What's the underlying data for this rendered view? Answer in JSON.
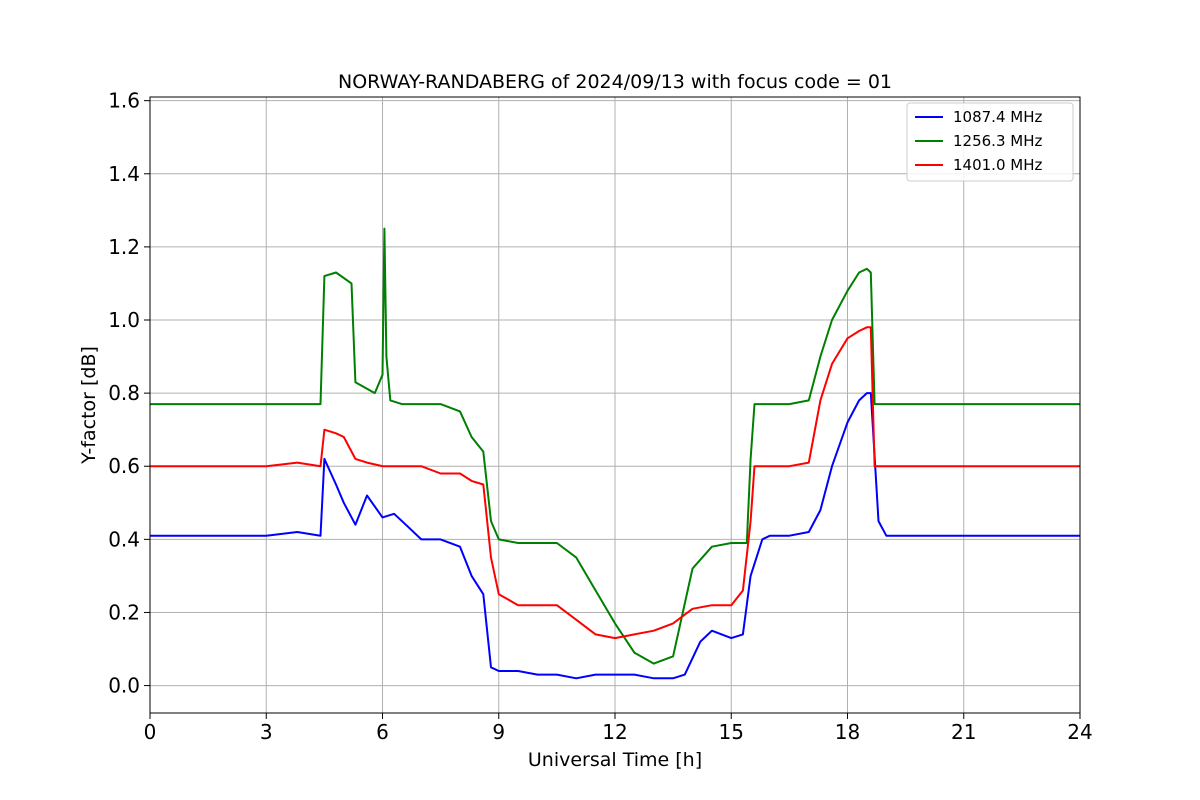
{
  "chart_data": {
    "type": "line",
    "title": "NORWAY-RANDABERG of 2024/09/13 with focus code = 01",
    "xlabel": "Universal Time [h]",
    "ylabel": "Y-factor [dB]",
    "xlim": [
      0,
      24
    ],
    "ylim": [
      -0.075,
      1.61
    ],
    "xticks": [
      "0",
      "3",
      "6",
      "9",
      "12",
      "15",
      "18",
      "21",
      "24"
    ],
    "yticks": [
      "0.0",
      "0.2",
      "0.4",
      "0.6",
      "0.8",
      "1.0",
      "1.2",
      "1.4",
      "1.6"
    ],
    "grid": true,
    "legend_position": "top-right",
    "series": [
      {
        "name": "1087.4 MHz",
        "color": "#0000ff",
        "x": [
          0,
          1,
          2,
          3,
          3.8,
          4.4,
          4.5,
          4.8,
          5.0,
          5.3,
          5.6,
          6.0,
          6.3,
          6.6,
          7.0,
          7.5,
          8.0,
          8.3,
          8.6,
          8.8,
          9.0,
          9.5,
          10.0,
          10.5,
          11.0,
          11.5,
          12.0,
          12.5,
          13.0,
          13.5,
          13.8,
          14.2,
          14.5,
          15.0,
          15.3,
          15.5,
          15.8,
          16.0,
          16.5,
          17.0,
          17.3,
          17.6,
          18.0,
          18.3,
          18.5,
          18.6,
          18.8,
          19.0,
          20.0,
          21.0,
          22.0,
          23.0,
          24.0
        ],
        "y": [
          0.41,
          0.41,
          0.41,
          0.41,
          0.42,
          0.41,
          0.62,
          0.55,
          0.5,
          0.44,
          0.52,
          0.46,
          0.47,
          0.44,
          0.4,
          0.4,
          0.38,
          0.3,
          0.25,
          0.05,
          0.04,
          0.04,
          0.03,
          0.03,
          0.02,
          0.03,
          0.03,
          0.03,
          0.02,
          0.02,
          0.03,
          0.12,
          0.15,
          0.13,
          0.14,
          0.3,
          0.4,
          0.41,
          0.41,
          0.42,
          0.48,
          0.6,
          0.72,
          0.78,
          0.8,
          0.8,
          0.45,
          0.41,
          0.41,
          0.41,
          0.41,
          0.41,
          0.41
        ]
      },
      {
        "name": "1256.3 MHz",
        "color": "#008000",
        "x": [
          0,
          1,
          2,
          3,
          3.8,
          4.4,
          4.5,
          4.8,
          5.2,
          5.3,
          5.8,
          6.0,
          6.05,
          6.1,
          6.2,
          6.5,
          7.0,
          7.5,
          8.0,
          8.3,
          8.6,
          8.8,
          9.0,
          9.5,
          10.0,
          10.5,
          11.0,
          11.5,
          12.0,
          12.5,
          13.0,
          13.5,
          14.0,
          14.5,
          15.0,
          15.4,
          15.5,
          15.6,
          16.0,
          16.5,
          17.0,
          17.3,
          17.6,
          18.0,
          18.3,
          18.5,
          18.6,
          18.7,
          19.0,
          20.0,
          21.0,
          22.0,
          23.0,
          24.0
        ],
        "y": [
          0.77,
          0.77,
          0.77,
          0.77,
          0.77,
          0.77,
          1.12,
          1.13,
          1.1,
          0.83,
          0.8,
          0.85,
          1.25,
          0.9,
          0.78,
          0.77,
          0.77,
          0.77,
          0.75,
          0.68,
          0.64,
          0.45,
          0.4,
          0.39,
          0.39,
          0.39,
          0.35,
          0.26,
          0.17,
          0.09,
          0.06,
          0.08,
          0.32,
          0.38,
          0.39,
          0.39,
          0.62,
          0.77,
          0.77,
          0.77,
          0.78,
          0.9,
          1.0,
          1.08,
          1.13,
          1.14,
          1.13,
          0.77,
          0.77,
          0.77,
          0.77,
          0.77,
          0.77,
          0.77
        ]
      },
      {
        "name": "1401.0 MHz",
        "color": "#ff0000",
        "x": [
          0,
          1,
          2,
          3,
          3.8,
          4.4,
          4.5,
          4.8,
          5.0,
          5.3,
          5.6,
          6.0,
          6.5,
          7.0,
          7.5,
          8.0,
          8.3,
          8.6,
          8.8,
          9.0,
          9.5,
          10.0,
          10.5,
          11.0,
          11.5,
          12.0,
          12.5,
          13.0,
          13.5,
          14.0,
          14.5,
          15.0,
          15.3,
          15.5,
          15.6,
          16.0,
          16.5,
          17.0,
          17.3,
          17.6,
          18.0,
          18.3,
          18.5,
          18.6,
          18.7,
          19.0,
          20.0,
          21.0,
          22.0,
          23.0,
          24.0
        ],
        "y": [
          0.6,
          0.6,
          0.6,
          0.6,
          0.61,
          0.6,
          0.7,
          0.69,
          0.68,
          0.62,
          0.61,
          0.6,
          0.6,
          0.6,
          0.58,
          0.58,
          0.56,
          0.55,
          0.35,
          0.25,
          0.22,
          0.22,
          0.22,
          0.18,
          0.14,
          0.13,
          0.14,
          0.15,
          0.17,
          0.21,
          0.22,
          0.22,
          0.26,
          0.45,
          0.6,
          0.6,
          0.6,
          0.61,
          0.78,
          0.88,
          0.95,
          0.97,
          0.98,
          0.98,
          0.6,
          0.6,
          0.6,
          0.6,
          0.6,
          0.6,
          0.6
        ]
      }
    ]
  }
}
